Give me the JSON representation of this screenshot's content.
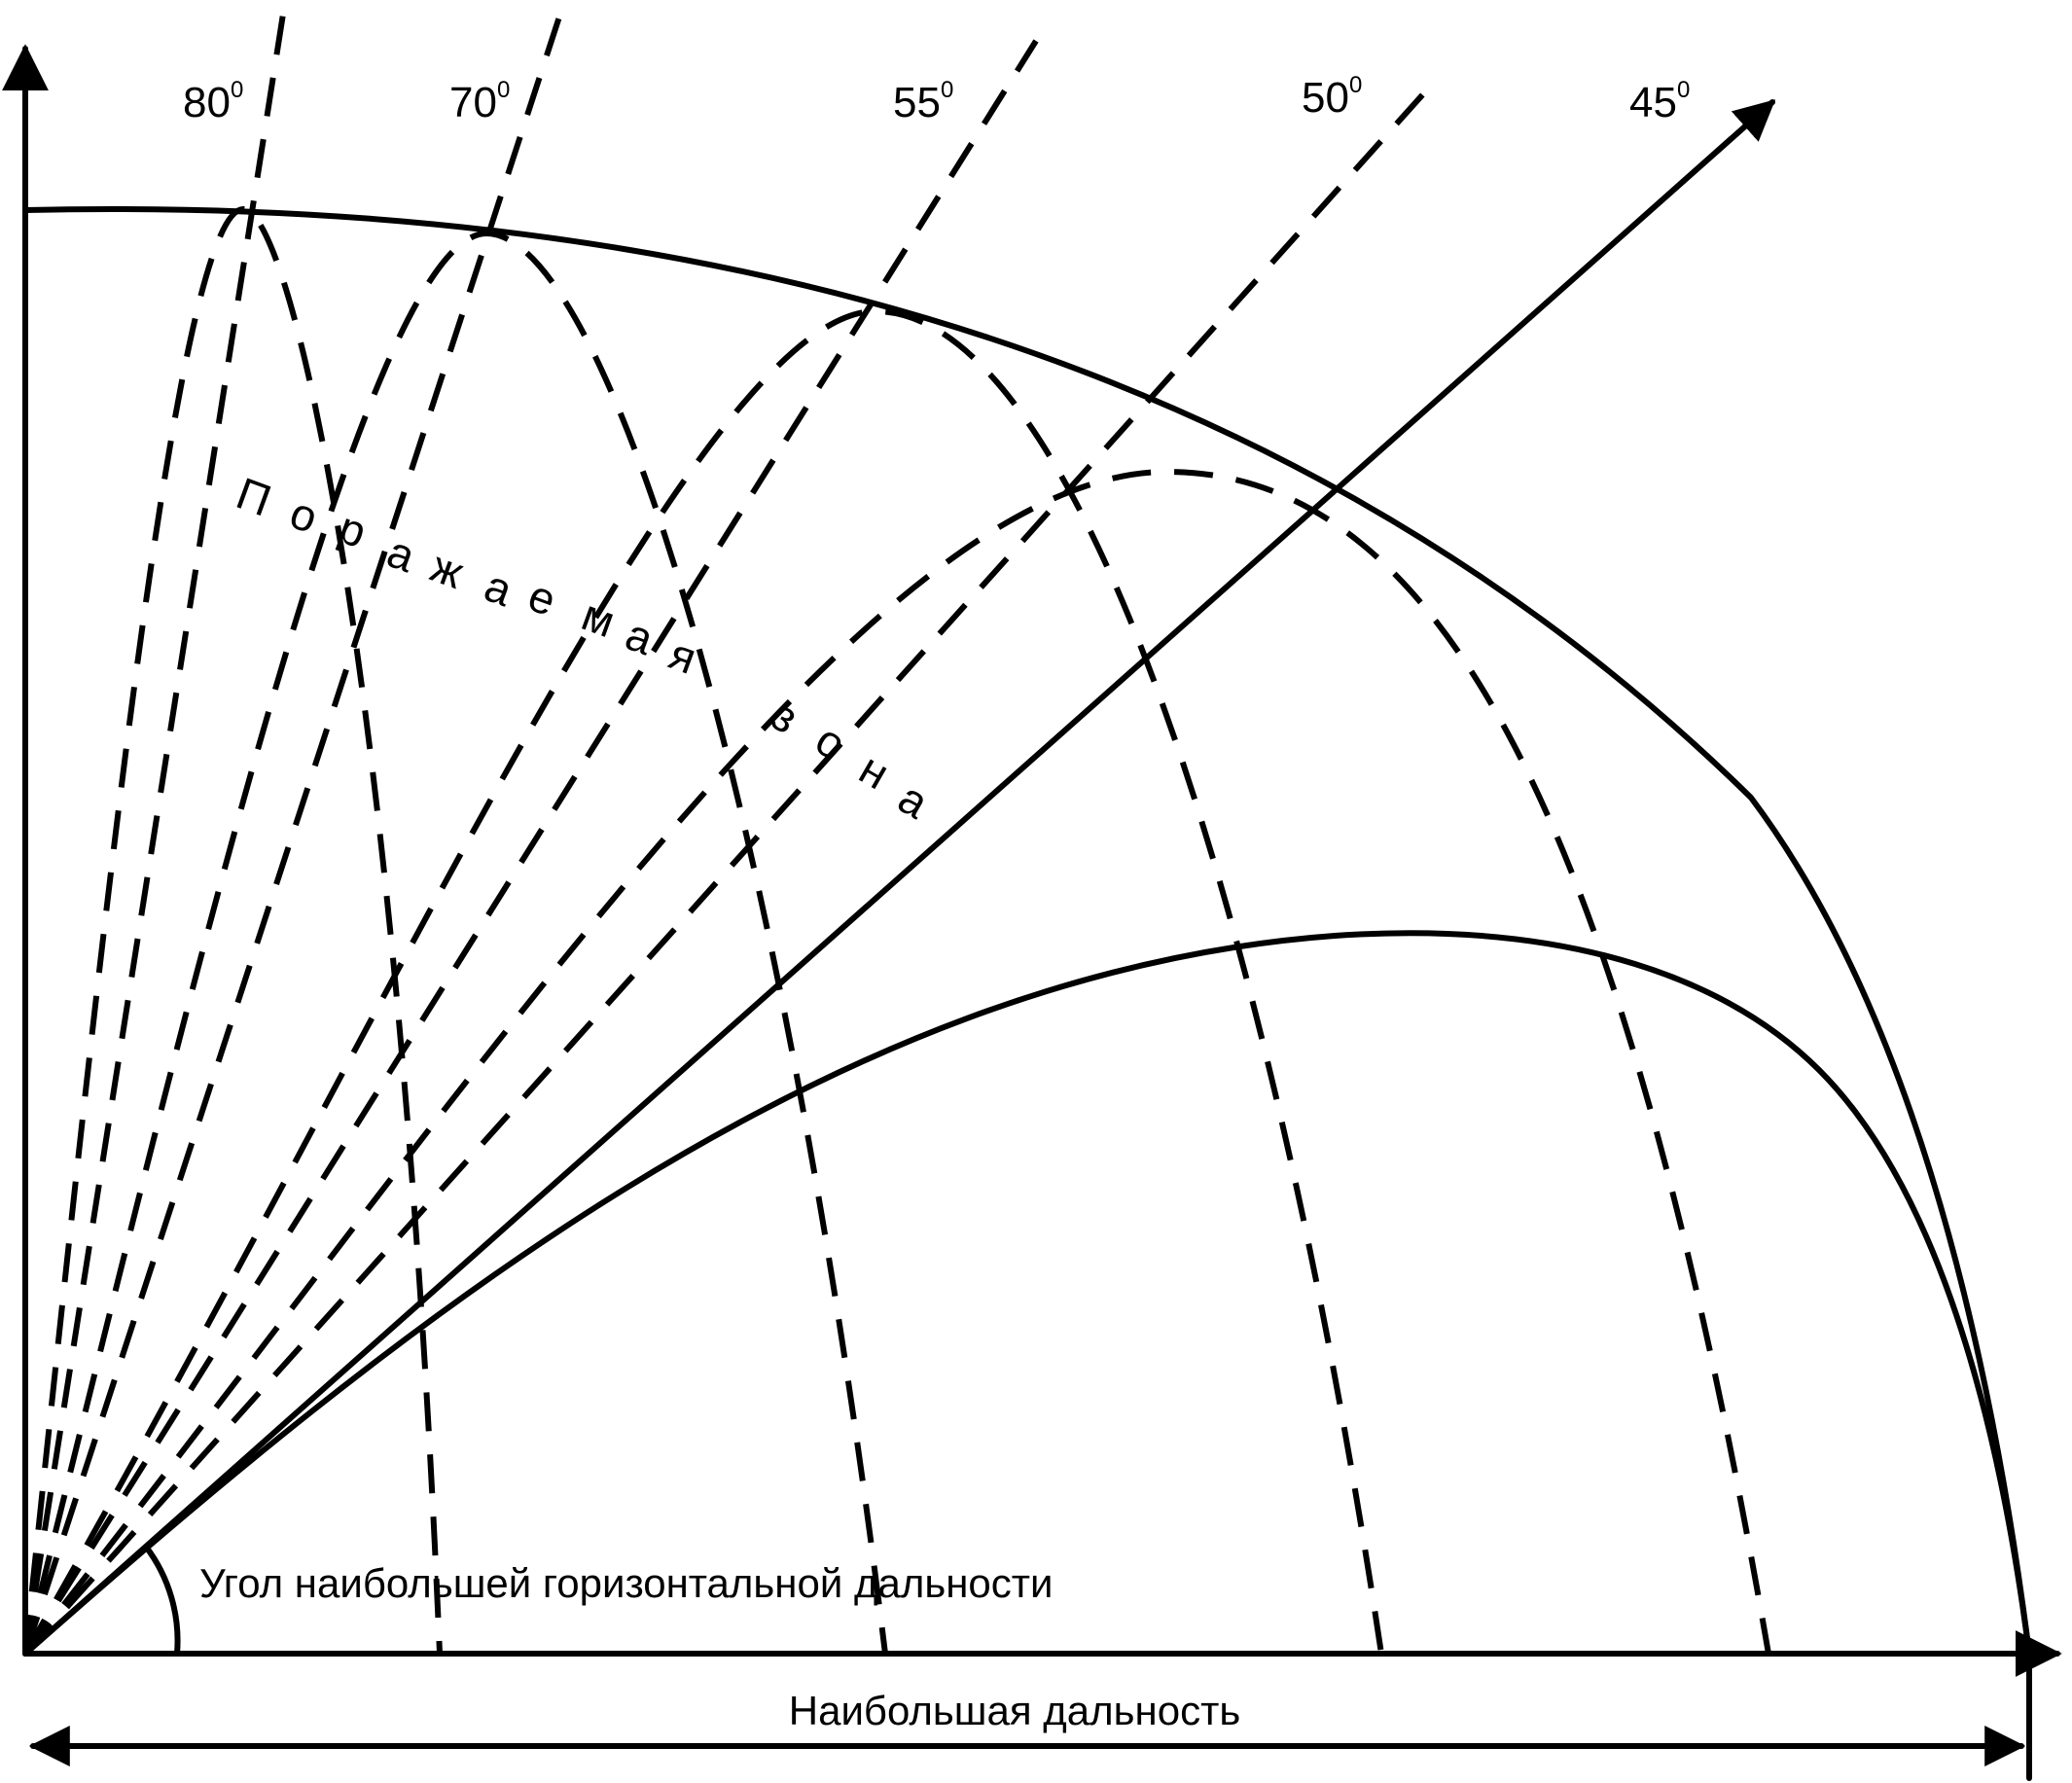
{
  "angles": [
    {
      "value": "80",
      "sup": "0"
    },
    {
      "value": "70",
      "sup": "0"
    },
    {
      "value": "55",
      "sup": "0"
    },
    {
      "value": "50",
      "sup": "0"
    },
    {
      "value": "45",
      "sup": "0"
    }
  ],
  "zone_label": {
    "word1": [
      "П",
      "о",
      "р",
      "а",
      "ж",
      "а",
      "е",
      "м",
      "а",
      "я"
    ],
    "word2": [
      "з",
      "о",
      "н",
      "а"
    ]
  },
  "angle_caption": "Угол наибольшей горизонтальной дальности",
  "range_caption": "Наибольшая дальность"
}
